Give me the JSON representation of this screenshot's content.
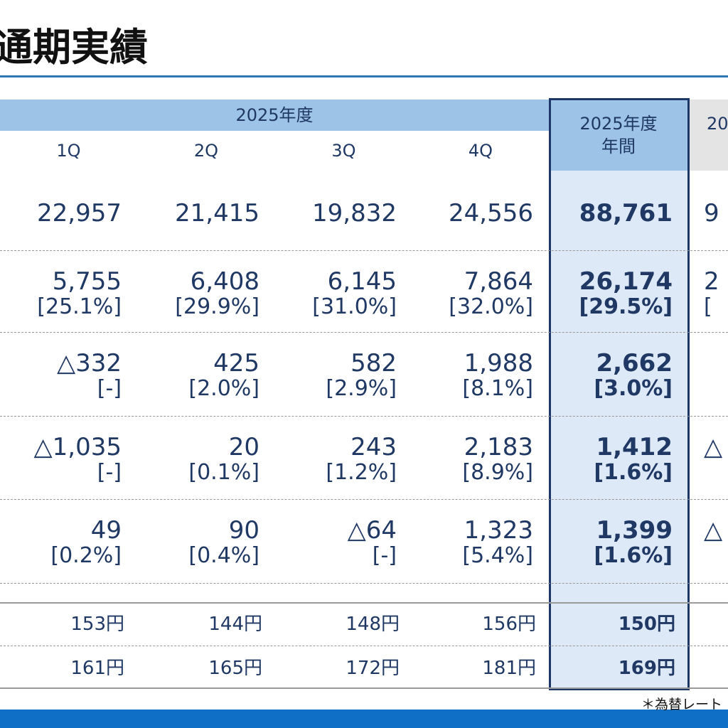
{
  "title": "通期実績",
  "header": {
    "group": "2025年度",
    "quarters": [
      "1Q",
      "2Q",
      "3Q",
      "4Q"
    ],
    "annual": [
      "2025年度",
      "年間"
    ],
    "next": "20"
  },
  "rows": [
    {
      "values": [
        "22,957",
        "21,415",
        "19,832",
        "24,556",
        "88,761"
      ],
      "next": [
        "9"
      ]
    },
    {
      "values": [
        "5,755",
        "6,408",
        "6,145",
        "7,864",
        "26,174"
      ],
      "pct": [
        "[25.1%]",
        "[29.9%]",
        "[31.0%]",
        "[32.0%]",
        "[29.5%]"
      ],
      "next": [
        "2",
        "["
      ]
    },
    {
      "values": [
        "△332",
        "425",
        "582",
        "1,988",
        "2,662"
      ],
      "pct": [
        "[-]",
        "[2.0%]",
        "[2.9%]",
        "[8.1%]",
        "[3.0%]"
      ],
      "next": []
    },
    {
      "values": [
        "△1,035",
        "20",
        "243",
        "2,183",
        "1,412"
      ],
      "pct": [
        "[-]",
        "[0.1%]",
        "[1.2%]",
        "[8.9%]",
        "[1.6%]"
      ],
      "next": [
        "△"
      ]
    },
    {
      "values": [
        "49",
        "90",
        "△64",
        "1,323",
        "1,399"
      ],
      "pct": [
        "[0.2%]",
        "[0.4%]",
        "[-]",
        "[5.4%]",
        "[1.6%]"
      ],
      "next": [
        "△"
      ]
    }
  ],
  "rates": [
    [
      "153円",
      "144円",
      "148円",
      "156円",
      "150円"
    ],
    [
      "161円",
      "165円",
      "172円",
      "181円",
      "169円"
    ]
  ],
  "footnote": "＊為替レート"
}
